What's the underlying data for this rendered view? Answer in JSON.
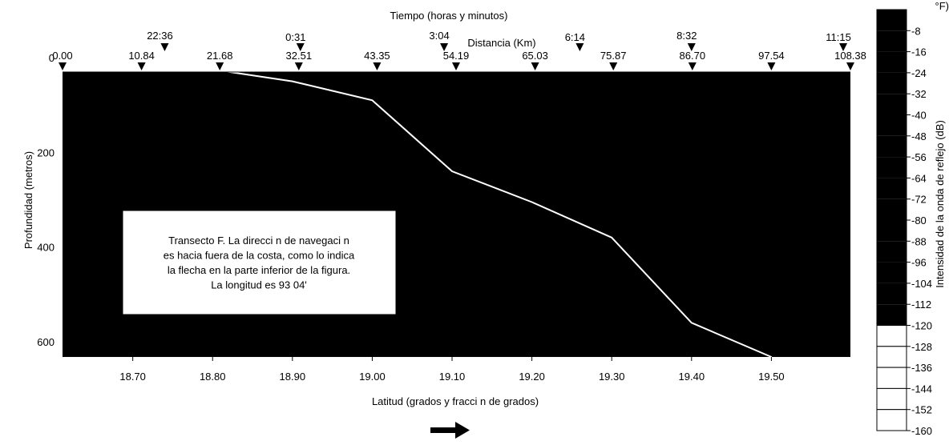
{
  "chart_data": {
    "type": "line",
    "corner_label": "°F)",
    "top_axis_title": "Tiempo (horas y minutos)",
    "distance_axis_title": "Distancia (Km)",
    "xlabel": "Latitud (grados y fracci  n de grados)",
    "ylabel": "Profundidad (metros)",
    "xlim": [
      18.612,
      19.599
    ],
    "ylim": [
      0,
      650
    ],
    "x_ticks": [
      "18.70",
      "18.80",
      "18.90",
      "19.00",
      "19.10",
      "19.20",
      "19.30",
      "19.40",
      "19.50"
    ],
    "x_tick_values": [
      18.7,
      18.8,
      18.9,
      19.0,
      19.1,
      19.2,
      19.3,
      19.4,
      19.5
    ],
    "y_ticks": [
      "0",
      "200",
      "400",
      "600"
    ],
    "y_tick_values": [
      0,
      200,
      400,
      600
    ],
    "distance_ticks": [
      "0.00",
      "10.84",
      "21.68",
      "32.51",
      "43.35",
      "54.19",
      "65.03",
      "75.87",
      "86.70",
      "97.54",
      "108.38"
    ],
    "distance_latitudes": [
      18.612,
      18.711,
      18.809,
      18.908,
      19.006,
      19.105,
      19.204,
      19.302,
      19.401,
      19.5,
      19.599
    ],
    "time_ticks": [
      "22:36",
      "0:31",
      "3:04",
      "6:14",
      "8:32",
      "11:15"
    ],
    "time_latitudes": [
      18.74,
      18.91,
      19.09,
      19.26,
      19.4,
      19.59
    ],
    "series": [
      {
        "x": [
          18.612,
          18.7,
          18.8,
          18.9,
          19.0,
          19.1,
          19.2,
          19.3,
          19.4,
          19.5
        ],
        "y": [
          5,
          10,
          25,
          50,
          90,
          240,
          305,
          380,
          560,
          650
        ],
        "color": "#ffffff"
      }
    ],
    "annotation": [
      "Transecto F. La direcci  n de navegaci  n",
      "es hacia fuera de la costa, como lo indica",
      "la flecha en la parte inferior de la figura.",
      "La longitud es 93   04'"
    ],
    "colorbar": {
      "label": "Intensidad de la onda de reflejo (dB)",
      "ticks": [
        "-8",
        "-16",
        "-24",
        "-32",
        "-40",
        "-48",
        "-56",
        "-64",
        "-72",
        "-80",
        "-88",
        "-96",
        "-104",
        "-112",
        "-120",
        "-128",
        "-136",
        "-144",
        "-152",
        "-160"
      ],
      "filled_levels": 15,
      "total_levels": 20
    },
    "direction_arrow": "right",
    "colors": {
      "background": "#ffffff",
      "plot": "#000000",
      "profile": "#ffffff"
    }
  }
}
